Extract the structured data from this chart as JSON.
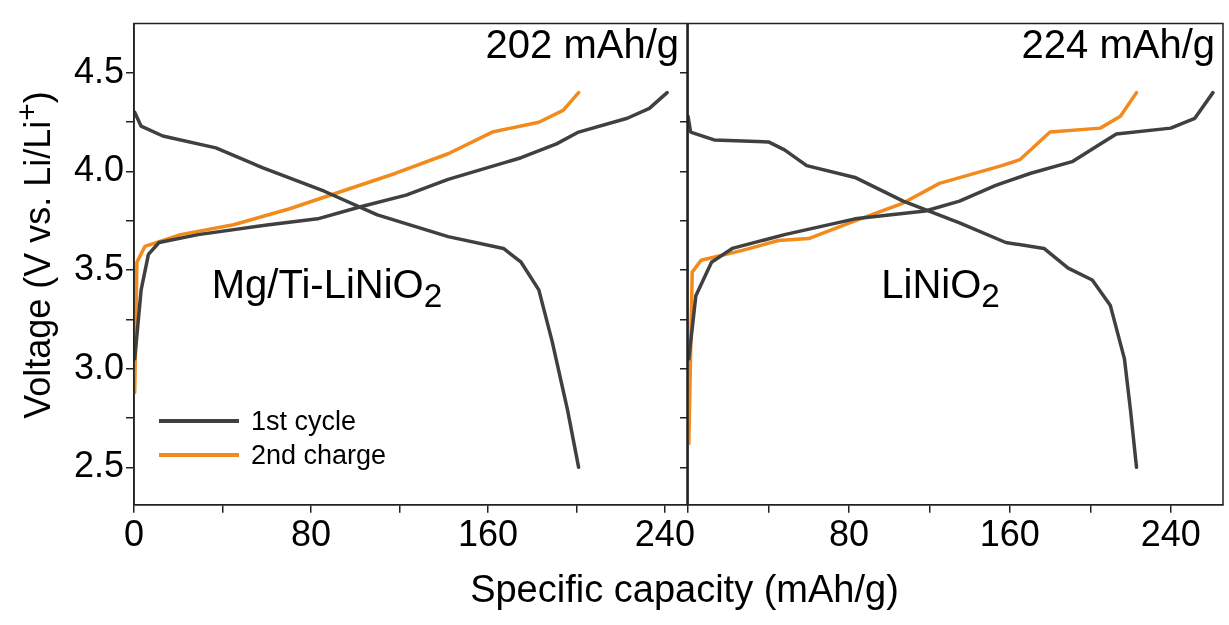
{
  "chart_data": [
    {
      "type": "line",
      "ylabel": "Voltage (V vs. Li/Li$^{+}$)",
      "xlabel": "Specific capacity (mAh/g)",
      "annotations": [
        "202 mAh/g",
        "Mg/Ti-LiNiO$_{2}$"
      ],
      "legend": "bottom left",
      "marker": "none",
      "line_style": "solid",
      "xlim": [
        0,
        250
      ],
      "xticks": [
        0,
        {
          "value": 40,
          "label": null
        },
        80,
        {
          "value": 120,
          "label": null
        },
        160,
        {
          "value": 200,
          "label": null
        },
        240
      ],
      "ylim": [
        2.31,
        4.75
      ],
      "yticks": [
        2.5,
        {
          "value": 2.75,
          "label": null
        },
        {
          "value": 3,
          "label": "3.0"
        },
        {
          "value": 3.25,
          "label": null
        },
        3.5,
        {
          "value": 3.75,
          "label": null
        },
        {
          "value": 4,
          "label": "4.0"
        },
        {
          "value": 4.25,
          "label": null
        },
        4.5
      ],
      "series": [
        {
          "name": "1st cycle",
          "color": "#404040",
          "x": [
            0.3,
            3.2,
            6.5,
            11.3,
            29,
            61,
            83,
            102,
            123,
            142,
            175,
            191,
            201,
            223,
            233,
            241
          ],
          "values": [
            3.05,
            3.4,
            3.58,
            3.64,
            3.68,
            3.73,
            3.76,
            3.82,
            3.88,
            3.96,
            4.07,
            4.14,
            4.2,
            4.27,
            4.32,
            4.4
          ]
        },
        {
          "color": "#404040",
          "x": [
            0.3,
            3.2,
            13,
            37,
            58,
            86,
            110,
            142,
            167,
            175,
            183,
            189,
            196,
            201
          ],
          "values": [
            4.3,
            4.23,
            4.18,
            4.12,
            4.02,
            3.9,
            3.78,
            3.67,
            3.61,
            3.54,
            3.4,
            3.14,
            2.79,
            2.5
          ]
        },
        {
          "name": "2nd charge",
          "color": "#f28a1c",
          "x": [
            0.3,
            1.3,
            4.9,
            21,
            45,
            70,
            94,
            118,
            142,
            162,
            183,
            194,
            201
          ],
          "values": [
            2.88,
            3.54,
            3.62,
            3.68,
            3.73,
            3.81,
            3.9,
            3.99,
            4.09,
            4.2,
            4.25,
            4.31,
            4.4
          ]
        }
      ]
    },
    {
      "type": "line",
      "annotations": [
        "224 mAh/g",
        "LiNiO$_{2}$"
      ],
      "marker": "none",
      "line_style": "solid",
      "tick_labels": "x",
      "xlim": [
        0,
        266
      ],
      "xticks": [
        {
          "value": 0,
          "label": null
        },
        {
          "value": 40,
          "label": null
        },
        80,
        {
          "value": 120,
          "label": null
        },
        160,
        {
          "value": 200,
          "label": null
        },
        240
      ],
      "ylim": [
        2.31,
        4.75
      ],
      "yticks": [
        {
          "value": 2.5,
          "label": null
        },
        {
          "value": 2.75,
          "label": null
        },
        {
          "value": 3,
          "label": null
        },
        {
          "value": 3.25,
          "label": null
        },
        {
          "value": 3.5,
          "label": null
        },
        {
          "value": 3.75,
          "label": null
        },
        {
          "value": 4,
          "label": null
        },
        {
          "value": 4.25,
          "label": null
        },
        {
          "value": 4.5,
          "label": null
        }
      ],
      "series": [
        {
          "color": "#404040",
          "x": [
            0.4,
            3.9,
            11.7,
            22,
            48,
            83,
            118,
            135,
            153,
            170,
            191,
            205,
            213,
            240,
            252,
            261
          ],
          "values": [
            3.05,
            3.37,
            3.54,
            3.61,
            3.68,
            3.76,
            3.8,
            3.85,
            3.93,
            3.99,
            4.05,
            4.14,
            4.19,
            4.22,
            4.27,
            4.4
          ]
        },
        {
          "color": "#404040",
          "x": [
            0,
            1.3,
            13,
            40,
            48,
            59,
            83,
            107,
            135,
            158,
            177,
            189,
            201,
            210,
            217,
            220,
            223
          ],
          "values": [
            4.28,
            4.2,
            4.16,
            4.15,
            4.11,
            4.03,
            3.97,
            3.85,
            3.74,
            3.64,
            3.61,
            3.51,
            3.45,
            3.32,
            3.05,
            2.79,
            2.5
          ]
        },
        {
          "color": "#f28a1c",
          "x": [
            0.4,
            2.1,
            6.5,
            27,
            45,
            60,
            83,
            107,
            125,
            156,
            165,
            180,
            205,
            215,
            223
          ],
          "values": [
            2.62,
            3.49,
            3.55,
            3.6,
            3.65,
            3.66,
            3.75,
            3.84,
            3.94,
            4.03,
            4.06,
            4.2,
            4.22,
            4.28,
            4.4
          ]
        }
      ]
    }
  ]
}
